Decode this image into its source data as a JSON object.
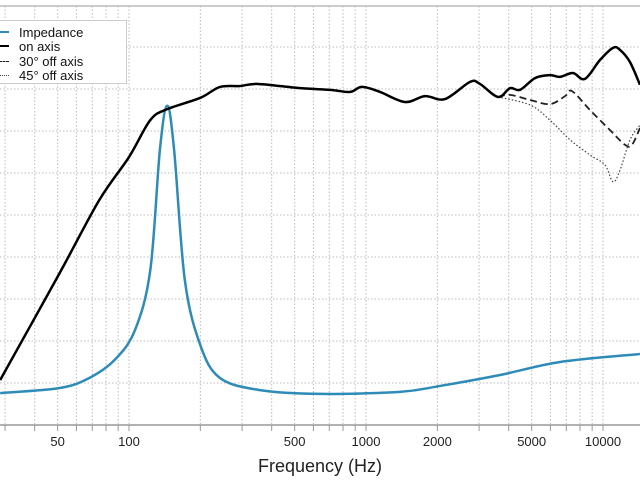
{
  "chart_data": {
    "type": "line",
    "title": "",
    "xlabel": "Frequency (Hz)",
    "ylabel": "",
    "xscale": "log",
    "xlim": [
      28.6,
      14320
    ],
    "ylim": [
      0,
      10
    ],
    "grid": true,
    "legend_position": "top-left",
    "xticks": [
      50,
      100,
      500,
      1000,
      2000,
      5000,
      10000
    ],
    "xtick_labels": [
      "50",
      "100",
      "500",
      "1000",
      "2000",
      "5000",
      "10000"
    ],
    "colors": {
      "impedance": "#2e8bb8",
      "on_axis": "#000000",
      "off30": "#222222",
      "off45": "#444444",
      "grid": "#bbbbbb"
    },
    "series": [
      {
        "name": "Impedance",
        "style": "solid-blue",
        "x": [
          28.6,
          51,
          68,
          87,
          106,
          123,
          135,
          145,
          155,
          172,
          200,
          242,
          357,
          640,
          1390,
          2052,
          3676,
          6590,
          14320
        ],
        "y": [
          0.76,
          0.88,
          1.12,
          1.55,
          2.26,
          3.69,
          6.55,
          7.6,
          6.55,
          3.45,
          1.9,
          1.12,
          0.83,
          0.74,
          0.79,
          0.93,
          1.19,
          1.5,
          1.69
        ]
      },
      {
        "name": "on axis",
        "style": "solid",
        "x": [
          28.6,
          51,
          75,
          100,
          123,
          145,
          200,
          242,
          294,
          350,
          527,
          705,
          856,
          962,
          1146,
          1461,
          1774,
          2154,
          2748,
          3027,
          3606,
          4052,
          4467,
          5166,
          5970,
          6590,
          7470,
          8390,
          9710,
          11020,
          11800,
          13000,
          14320
        ],
        "y": [
          1.07,
          3.62,
          5.36,
          6.38,
          7.26,
          7.52,
          7.79,
          8.05,
          8.07,
          8.12,
          8.02,
          7.98,
          7.93,
          8.05,
          7.93,
          7.69,
          7.83,
          7.76,
          8.17,
          8.12,
          7.81,
          8.02,
          7.98,
          8.26,
          8.33,
          8.29,
          8.38,
          8.24,
          8.69,
          8.98,
          8.93,
          8.64,
          8.1
        ]
      },
      {
        "name": "30° off axis",
        "style": "dashed",
        "x": [
          3606,
          4052,
          4921,
          5970,
          6915,
          7400,
          8810,
          10710,
          12390,
          13250,
          14320
        ],
        "y": [
          7.81,
          7.86,
          7.74,
          7.64,
          7.83,
          7.95,
          7.5,
          7.02,
          6.67,
          6.67,
          7.07
        ]
      },
      {
        "name": "45° off axis",
        "style": "dotted",
        "x": [
          3606,
          4921,
          5970,
          7260,
          8810,
          10190,
          11020,
          11800,
          13000,
          14320
        ],
        "y": [
          7.81,
          7.62,
          7.26,
          6.79,
          6.43,
          6.19,
          5.79,
          6.07,
          6.79,
          7.14
        ]
      }
    ]
  }
}
